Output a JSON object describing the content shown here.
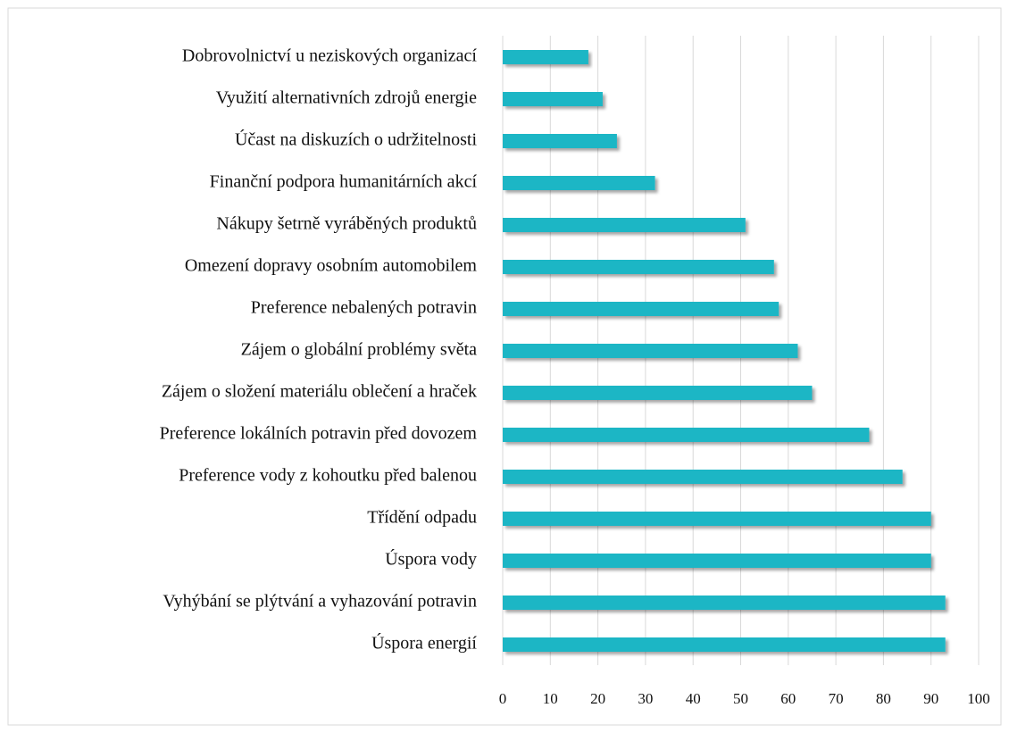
{
  "chart_data": {
    "type": "bar",
    "orientation": "horizontal",
    "categories": [
      "Dobrovolnictví u neziskových organizací",
      "Využití alternativních zdrojů energie",
      "Účast na diskuzích o udržitelnosti",
      "Finanční podpora humanitárních akcí",
      "Nákupy šetrně vyráběných produktů",
      "Omezení dopravy osobním automobilem",
      "Preference nebalených potravin",
      "Zájem o globální problémy světa",
      "Zájem o složení materiálu oblečení a hraček",
      "Preference lokálních potravin před dovozem",
      "Preference vody z kohoutku před balenou",
      "Třídění odpadu",
      "Úspora vody",
      "Vyhýbání se plýtvání a vyhazování potravin",
      "Úspora energií"
    ],
    "values": [
      18,
      21,
      24,
      32,
      51,
      57,
      58,
      62,
      65,
      77,
      84,
      90,
      90,
      93,
      93
    ],
    "color": "#1fb6c5",
    "xlim": [
      0,
      100
    ],
    "xticks": [
      0,
      10,
      20,
      30,
      40,
      50,
      60,
      70,
      80,
      90,
      100
    ],
    "grid": true
  }
}
